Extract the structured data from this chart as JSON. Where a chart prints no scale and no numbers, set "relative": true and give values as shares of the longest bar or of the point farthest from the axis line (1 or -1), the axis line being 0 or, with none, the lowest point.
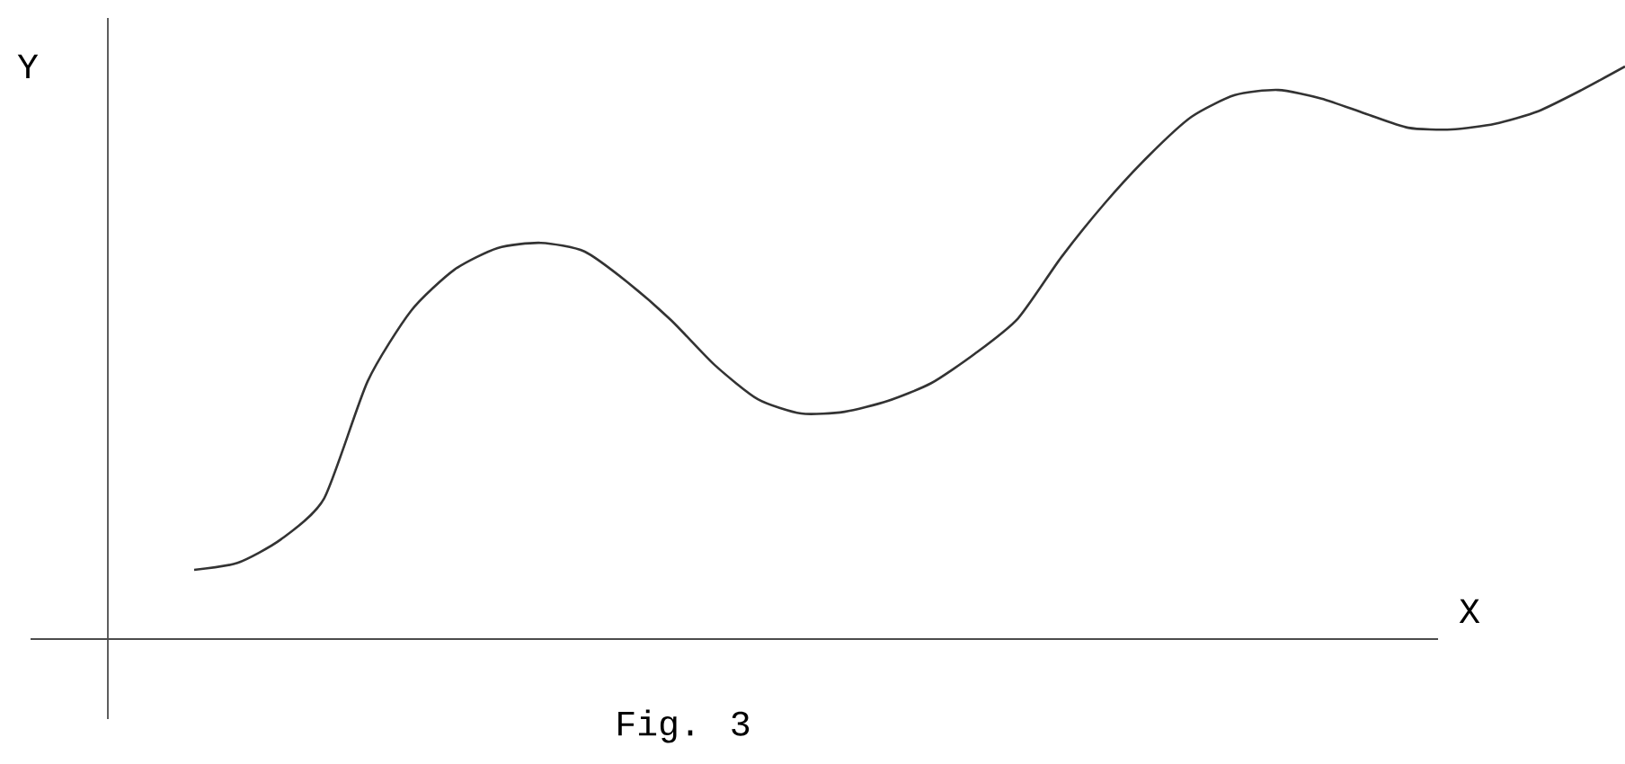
{
  "chart_data": {
    "type": "line",
    "xlabel": "X",
    "ylabel": "Y",
    "annotations": [
      "Fig. 3"
    ],
    "relative": true,
    "color": "#333333",
    "categories": [
      null,
      null,
      null,
      null,
      null,
      null,
      null,
      null,
      null,
      null,
      null,
      null,
      null,
      null,
      null,
      null,
      null,
      null,
      null,
      null,
      null,
      null,
      null,
      null,
      null,
      null,
      null,
      null,
      null,
      null,
      null,
      null,
      null,
      null
    ],
    "values": [
      0.121,
      0.133,
      0.174,
      0.246,
      0.45,
      0.573,
      0.645,
      0.683,
      0.692,
      0.677,
      0.623,
      0.557,
      0.479,
      0.419,
      0.394,
      0.397,
      0.416,
      0.447,
      0.498,
      0.56,
      0.667,
      0.761,
      0.843,
      0.912,
      0.95,
      0.959,
      0.944,
      0.918,
      0.893,
      0.89,
      0.9,
      0.922,
      0.959,
      1.0
    ]
  }
}
